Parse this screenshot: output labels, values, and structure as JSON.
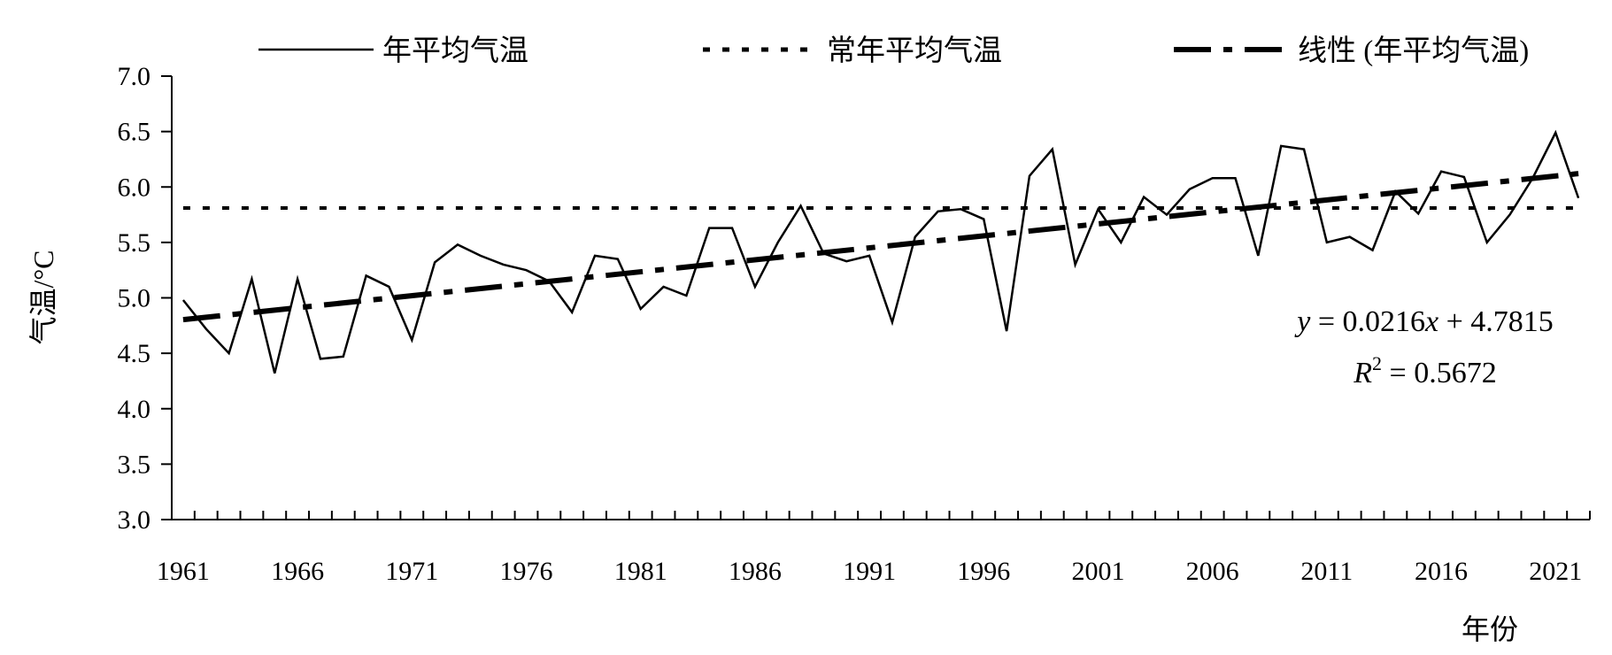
{
  "chart_data": {
    "type": "line",
    "xlabel": "年份",
    "ylabel": "气温/°C",
    "ylim": [
      3.0,
      7.0
    ],
    "xlim": [
      1961,
      2022
    ],
    "y_ticks": [
      "3.0",
      "3.5",
      "4.0",
      "4.5",
      "5.0",
      "5.5",
      "6.0",
      "6.5",
      "7.0"
    ],
    "x_ticks": [
      "1961",
      "1966",
      "1971",
      "1976",
      "1981",
      "1986",
      "1991",
      "1996",
      "2001",
      "2006",
      "2011",
      "2016",
      "2021"
    ],
    "grid": false,
    "legend_position": "top",
    "series": [
      {
        "name": "年平均气温",
        "style": "solid",
        "x": [
          1961,
          1962,
          1963,
          1964,
          1965,
          1966,
          1967,
          1968,
          1969,
          1970,
          1971,
          1972,
          1973,
          1974,
          1975,
          1976,
          1977,
          1978,
          1979,
          1980,
          1981,
          1982,
          1983,
          1984,
          1985,
          1986,
          1987,
          1988,
          1989,
          1990,
          1991,
          1992,
          1993,
          1994,
          1995,
          1996,
          1997,
          1998,
          1999,
          2000,
          2001,
          2002,
          2003,
          2004,
          2005,
          2006,
          2007,
          2008,
          2009,
          2010,
          2011,
          2012,
          2013,
          2014,
          2015,
          2016,
          2017,
          2018,
          2019,
          2020,
          2021,
          2022
        ],
        "values": [
          4.98,
          4.72,
          4.5,
          5.17,
          4.32,
          5.17,
          4.45,
          4.47,
          5.2,
          5.1,
          4.62,
          5.32,
          5.48,
          5.38,
          5.3,
          5.25,
          5.15,
          4.87,
          5.38,
          5.35,
          4.9,
          5.1,
          5.02,
          5.63,
          5.63,
          5.1,
          5.5,
          5.83,
          5.4,
          5.33,
          5.38,
          4.78,
          5.55,
          5.78,
          5.8,
          5.71,
          4.7,
          6.1,
          6.34,
          5.3,
          5.8,
          5.5,
          5.91,
          5.75,
          5.98,
          6.08,
          6.08,
          5.38,
          6.37,
          6.34,
          5.5,
          5.55,
          5.43,
          5.96,
          5.76,
          6.14,
          6.09,
          5.5,
          5.75,
          6.08,
          6.49,
          5.9
        ]
      },
      {
        "name": "常年平均气温",
        "style": "dotted",
        "x": [
          1961,
          2022
        ],
        "values": [
          5.81,
          5.81
        ]
      },
      {
        "name": "线性 (年平均气温)",
        "style": "dashed",
        "x": [
          1961,
          2022
        ],
        "values": [
          4.8031,
          6.1207
        ]
      }
    ],
    "trendline": {
      "slope": 0.0216,
      "intercept": 4.7815,
      "equation_parts": [
        "y",
        " = 0.0216",
        "x",
        " + 4.7815"
      ],
      "r2_parts": [
        "R",
        "2",
        " = 0.5672"
      ]
    }
  }
}
